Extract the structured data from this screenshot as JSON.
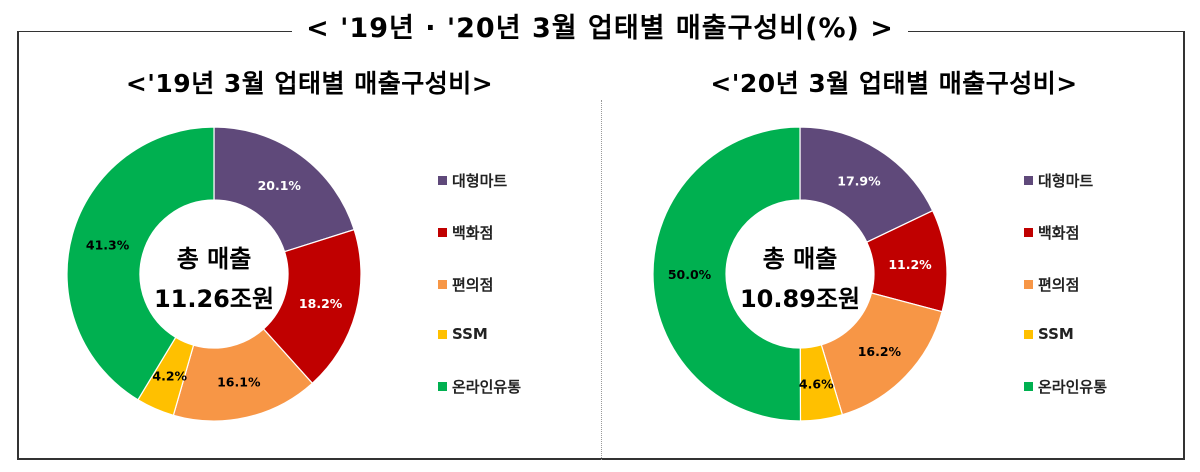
{
  "title": "< '19년 · '20년 3월 업태별 매출구성비(%) >",
  "colors": {
    "대형마트": "#5f497a",
    "백화점": "#c00000",
    "편의점": "#f79646",
    "SSM": "#ffc000",
    "온라인유통": "#00b050"
  },
  "legend": [
    {
      "label": "대형마트",
      "color": "#5f497a"
    },
    {
      "label": "백화점",
      "color": "#c00000"
    },
    {
      "label": "편의점",
      "color": "#f79646"
    },
    {
      "label": "SSM",
      "color": "#ffc000"
    },
    {
      "label": "온라인유통",
      "color": "#00b050"
    }
  ],
  "charts": [
    {
      "subtitle": "<'19년 3월 업태별 매출구성비>",
      "center_line1": "총 매출",
      "center_line2": "11.26조원",
      "labels": [
        "20.1%",
        "18.2%",
        "16.1%",
        "4.2%",
        "41.3%"
      ]
    },
    {
      "subtitle": "<'20년 3월 업태별 매출구성비>",
      "center_line1": "총 매출",
      "center_line2": "10.89조원",
      "labels": [
        "17.9%",
        "11.2%",
        "16.2%",
        "4.6%",
        "50.0%"
      ]
    }
  ],
  "chart_data": [
    {
      "type": "pie",
      "variant": "donut",
      "title": "<'19년 3월 업태별 매출구성비>",
      "center_text": [
        "총 매출",
        "11.26조원"
      ],
      "categories": [
        "대형마트",
        "백화점",
        "편의점",
        "SSM",
        "온라인유통"
      ],
      "values": [
        20.1,
        18.2,
        16.1,
        4.2,
        41.3
      ],
      "unit": "%",
      "legend_position": "right"
    },
    {
      "type": "pie",
      "variant": "donut",
      "title": "<'20년 3월 업태별 매출구성비>",
      "center_text": [
        "총 매출",
        "10.89조원"
      ],
      "categories": [
        "대형마트",
        "백화점",
        "편의점",
        "SSM",
        "온라인유통"
      ],
      "values": [
        17.9,
        11.2,
        16.2,
        4.6,
        50.0
      ],
      "unit": "%",
      "legend_position": "right"
    }
  ]
}
